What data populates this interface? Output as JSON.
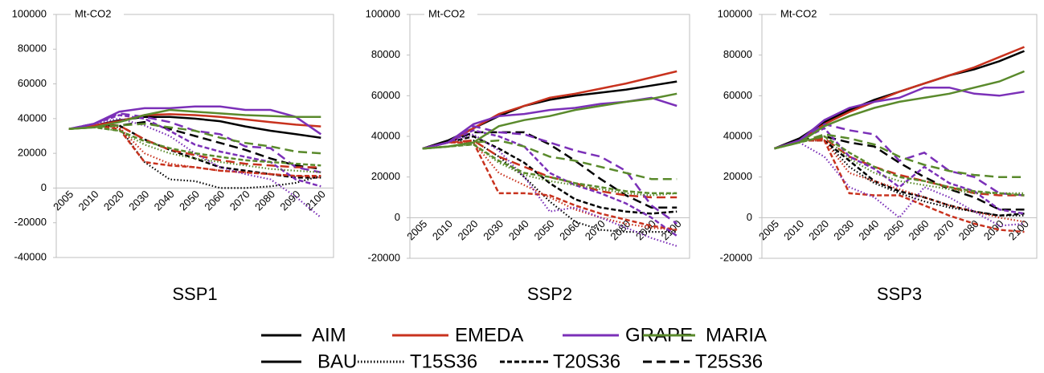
{
  "chart_data": [
    {
      "type": "line",
      "title": "SSP1",
      "y_label": "Mt-CO2",
      "categories": [
        "2005",
        "2010",
        "2020",
        "2030",
        "2040",
        "2050",
        "2060",
        "2070",
        "2080",
        "2090",
        "2100"
      ],
      "ylim": [
        -40000,
        100000
      ],
      "yticks": [
        -40000,
        -20000,
        0,
        20000,
        40000,
        60000,
        80000,
        100000
      ],
      "series": [
        [
          [
            34000,
            36000,
            39000,
            41000,
            41000,
            40000,
            38500,
            35500,
            33000,
            31000,
            29000
          ],
          [
            34000,
            36000,
            35000,
            15000,
            5000,
            4000,
            0,
            0,
            1000,
            3000,
            7000
          ],
          [
            34000,
            36000,
            36000,
            28000,
            22000,
            17000,
            12000,
            10000,
            8000,
            6000,
            6000
          ],
          [
            34000,
            36000,
            36000,
            38000,
            34000,
            30000,
            26000,
            22000,
            17000,
            13000,
            11000
          ]
        ],
        [
          [
            34000,
            36000,
            38500,
            42000,
            42500,
            42000,
            41000,
            39500,
            38000,
            36500,
            35500
          ],
          [
            34000,
            36000,
            35000,
            20000,
            14000,
            12000,
            10000,
            9000,
            8000,
            7000,
            6000
          ],
          [
            34000,
            36000,
            34000,
            15000,
            13000,
            12000,
            10000,
            9000,
            8000,
            7000,
            7000
          ],
          [
            34000,
            36000,
            36000,
            28000,
            22000,
            19000,
            16000,
            14000,
            13000,
            12000,
            12000
          ]
        ],
        [
          [
            34000,
            37000,
            44000,
            46000,
            46000,
            47000,
            47000,
            45000,
            45000,
            41000,
            31000
          ],
          [
            34000,
            37000,
            40000,
            36000,
            30000,
            20000,
            12000,
            8000,
            5000,
            -5000,
            -17000
          ],
          [
            34000,
            37000,
            42000,
            40000,
            33000,
            25000,
            21000,
            18000,
            15000,
            5000,
            1000
          ],
          [
            34000,
            37000,
            43000,
            41000,
            38000,
            33000,
            31000,
            24000,
            23000,
            12000,
            9000
          ]
        ],
        [
          [
            34000,
            35000,
            38000,
            42000,
            45000,
            44000,
            43000,
            42000,
            41500,
            41000,
            41000
          ],
          [
            34000,
            35000,
            33000,
            25000,
            20000,
            17000,
            15000,
            13000,
            11000,
            10000,
            9000
          ],
          [
            34000,
            35000,
            33000,
            27000,
            23000,
            20000,
            18000,
            16000,
            15000,
            14000,
            13000
          ],
          [
            34000,
            35000,
            36000,
            37000,
            35000,
            33000,
            29000,
            26000,
            24000,
            21000,
            20000
          ]
        ]
      ]
    },
    {
      "type": "line",
      "title": "SSP2",
      "y_label": "Mt-CO2",
      "categories": [
        "2005",
        "2010",
        "2020",
        "2030",
        "2040",
        "2050",
        "2060",
        "2070",
        "2080",
        "2090",
        "2100"
      ],
      "ylim": [
        -20000,
        100000
      ],
      "yticks": [
        -20000,
        0,
        20000,
        40000,
        60000,
        80000,
        100000
      ],
      "series": [
        [
          [
            34000,
            38000,
            44000,
            50000,
            55000,
            58000,
            60000,
            61500,
            63000,
            65000,
            67000
          ],
          [
            34000,
            37000,
            38000,
            30000,
            20000,
            8000,
            -2000,
            -6000,
            -7000,
            -7000,
            -7000
          ],
          [
            34000,
            37000,
            40000,
            34000,
            27000,
            17000,
            9000,
            5000,
            3000,
            2000,
            3000
          ],
          [
            34000,
            37000,
            42000,
            42000,
            42000,
            36000,
            28000,
            19000,
            11000,
            5000,
            5000
          ]
        ],
        [
          [
            34000,
            37000,
            44000,
            51000,
            55000,
            59000,
            61000,
            63500,
            66000,
            69000,
            72000
          ],
          [
            34000,
            37000,
            37000,
            22000,
            16000,
            10000,
            4000,
            0,
            -3000,
            -5000,
            -6000
          ],
          [
            34000,
            37000,
            37000,
            12000,
            12000,
            11000,
            6000,
            2000,
            -1000,
            -4000,
            -6000
          ],
          [
            34000,
            37000,
            38000,
            30000,
            25000,
            20000,
            17000,
            13000,
            11000,
            10000,
            10000
          ]
        ],
        [
          [
            34000,
            37000,
            46000,
            50000,
            51000,
            53000,
            54000,
            56000,
            57000,
            59000,
            55000
          ],
          [
            34000,
            37000,
            41000,
            33000,
            20000,
            3000,
            5000,
            0,
            -5000,
            -10000,
            -14000
          ],
          [
            34000,
            37000,
            43000,
            40000,
            35000,
            22000,
            16000,
            12000,
            7000,
            0,
            -9000
          ],
          [
            34000,
            37000,
            45000,
            42000,
            41000,
            37000,
            33000,
            30000,
            23000,
            6000,
            -3000
          ]
        ],
        [
          [
            34000,
            35000,
            37000,
            45000,
            48000,
            50000,
            53000,
            55000,
            57000,
            58500,
            61000
          ],
          [
            34000,
            35000,
            36000,
            27000,
            21000,
            18000,
            16000,
            14000,
            12000,
            11000,
            12000
          ],
          [
            34000,
            35000,
            36000,
            28000,
            22000,
            20000,
            17000,
            15000,
            13000,
            12000,
            12000
          ],
          [
            34000,
            35000,
            37000,
            38000,
            35000,
            30000,
            28000,
            25000,
            22000,
            19000,
            19000
          ]
        ]
      ]
    },
    {
      "type": "line",
      "title": "SSP3",
      "y_label": "Mt-CO2",
      "categories": [
        "2005",
        "2010",
        "2020",
        "2030",
        "2040",
        "2050",
        "2060",
        "2070",
        "2080",
        "2090",
        "2100"
      ],
      "ylim": [
        -20000,
        100000
      ],
      "yticks": [
        -20000,
        0,
        20000,
        40000,
        60000,
        80000,
        100000
      ],
      "series": [
        [
          [
            34000,
            39000,
            47000,
            53000,
            58000,
            62000,
            66000,
            70000,
            73000,
            77000,
            82000
          ],
          [
            34000,
            38000,
            38000,
            25000,
            17000,
            12000,
            8000,
            5000,
            3000,
            1000,
            1000
          ],
          [
            34000,
            38000,
            38000,
            28000,
            18000,
            13000,
            10000,
            6000,
            3000,
            1000,
            2000
          ],
          [
            34000,
            38000,
            40000,
            37000,
            35000,
            27000,
            20000,
            14000,
            10000,
            4000,
            4000
          ]
        ],
        [
          [
            34000,
            38000,
            46000,
            52000,
            57000,
            62000,
            66000,
            70000,
            74000,
            79000,
            84000
          ],
          [
            34000,
            38000,
            38000,
            22000,
            18000,
            14000,
            10000,
            6000,
            3000,
            0,
            -2000
          ],
          [
            34000,
            38000,
            38000,
            12000,
            11000,
            11000,
            6000,
            1000,
            -3000,
            -6000,
            -7000
          ],
          [
            34000,
            38000,
            39000,
            30000,
            25000,
            21000,
            18000,
            15000,
            12000,
            11000,
            11000
          ]
        ],
        [
          [
            34000,
            38000,
            48000,
            54000,
            57000,
            59000,
            64000,
            64000,
            61000,
            60000,
            62000
          ],
          [
            34000,
            37000,
            30000,
            15000,
            10000,
            0,
            15000,
            10000,
            3000,
            -4000,
            -3000
          ],
          [
            34000,
            38000,
            44000,
            30000,
            24000,
            15000,
            25000,
            17000,
            13000,
            4000,
            2000
          ],
          [
            34000,
            38000,
            46000,
            43000,
            41000,
            28000,
            32000,
            23000,
            20000,
            12000,
            11000
          ]
        ],
        [
          [
            34000,
            37000,
            45000,
            50000,
            54000,
            57000,
            59000,
            61000,
            64000,
            67000,
            72000
          ],
          [
            34000,
            37000,
            40000,
            29000,
            22000,
            18000,
            16000,
            14000,
            12000,
            12000,
            12000
          ],
          [
            34000,
            37000,
            40000,
            32000,
            25000,
            20000,
            18000,
            15000,
            13000,
            12000,
            11000
          ],
          [
            34000,
            37000,
            41000,
            39000,
            36000,
            30000,
            26000,
            23000,
            21000,
            20000,
            20000
          ]
        ]
      ]
    }
  ],
  "legend": {
    "models": [
      {
        "name": "AIM",
        "color": "#000000"
      },
      {
        "name": "EMEDA",
        "color": "#c8321e"
      },
      {
        "name": "GRAPE",
        "color": "#7b30b8"
      },
      {
        "name": "MARIA",
        "color": "#5a8a2c"
      }
    ],
    "scenarios": [
      {
        "name": "BAU",
        "dash": "solid"
      },
      {
        "name": "T15S36",
        "dash": "dotted"
      },
      {
        "name": "T20S36",
        "dash": "dashed"
      },
      {
        "name": "T25S36",
        "dash": "longdash"
      }
    ]
  }
}
